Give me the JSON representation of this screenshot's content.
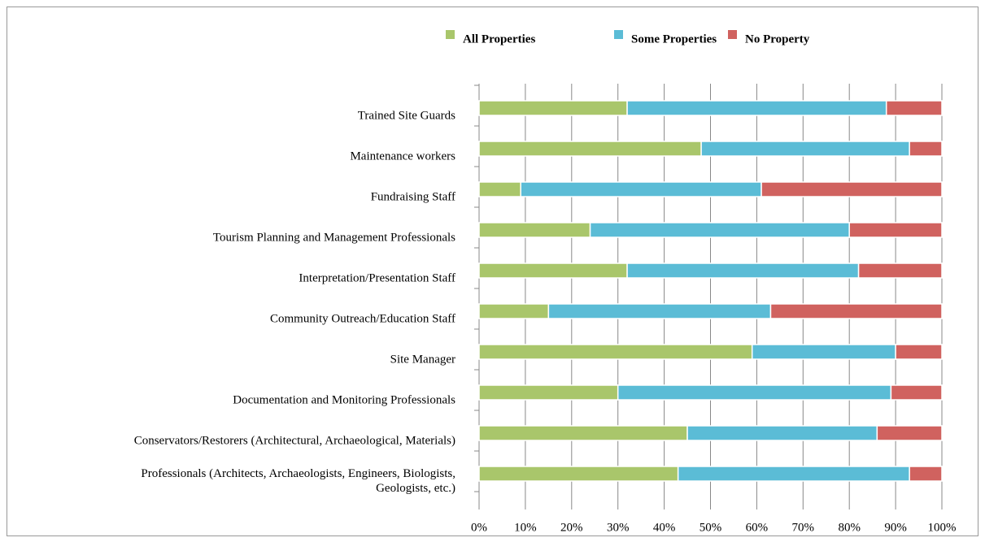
{
  "chart_data": {
    "type": "stacked_barh",
    "categories": [
      "Trained Site Guards",
      "Maintenance workers",
      "Fundraising Staff",
      "Tourism Planning and Management Professionals",
      "Interpretation/Presentation Staff",
      "Community Outreach/Education Staff",
      "Site Manager",
      "Documentation and Monitoring Professionals",
      "Conservators/Restorers (Architectural, Archaeological, Materials)",
      "Professionals (Architects, Archaeologists, Engineers, Biologists,\nGeologists, etc.)"
    ],
    "series": [
      {
        "name": "All Properties",
        "color": "#a9c66b",
        "values": [
          32,
          48,
          9,
          24,
          32,
          15,
          59,
          30,
          45,
          43
        ]
      },
      {
        "name": "Some Properties",
        "color": "#5bbcd6",
        "values": [
          56,
          45,
          52,
          56,
          50,
          48,
          31,
          59,
          41,
          50
        ]
      },
      {
        "name": "No Property",
        "color": "#d0625f",
        "values": [
          12,
          7,
          39,
          20,
          18,
          37,
          10,
          11,
          14,
          7
        ]
      }
    ],
    "xlim": [
      0,
      100
    ],
    "xticks": [
      {
        "value": 0,
        "label": "0%"
      },
      {
        "value": 10,
        "label": "10%"
      },
      {
        "value": 20,
        "label": "20%"
      },
      {
        "value": 30,
        "label": "30%"
      },
      {
        "value": 40,
        "label": "40%"
      },
      {
        "value": 50,
        "label": "50%"
      },
      {
        "value": 60,
        "label": "60%"
      },
      {
        "value": 70,
        "label": "70%"
      },
      {
        "value": 80,
        "label": "80%"
      },
      {
        "value": 90,
        "label": "90%"
      },
      {
        "value": 100,
        "label": "100%"
      }
    ],
    "grid": true,
    "legend": "top"
  }
}
